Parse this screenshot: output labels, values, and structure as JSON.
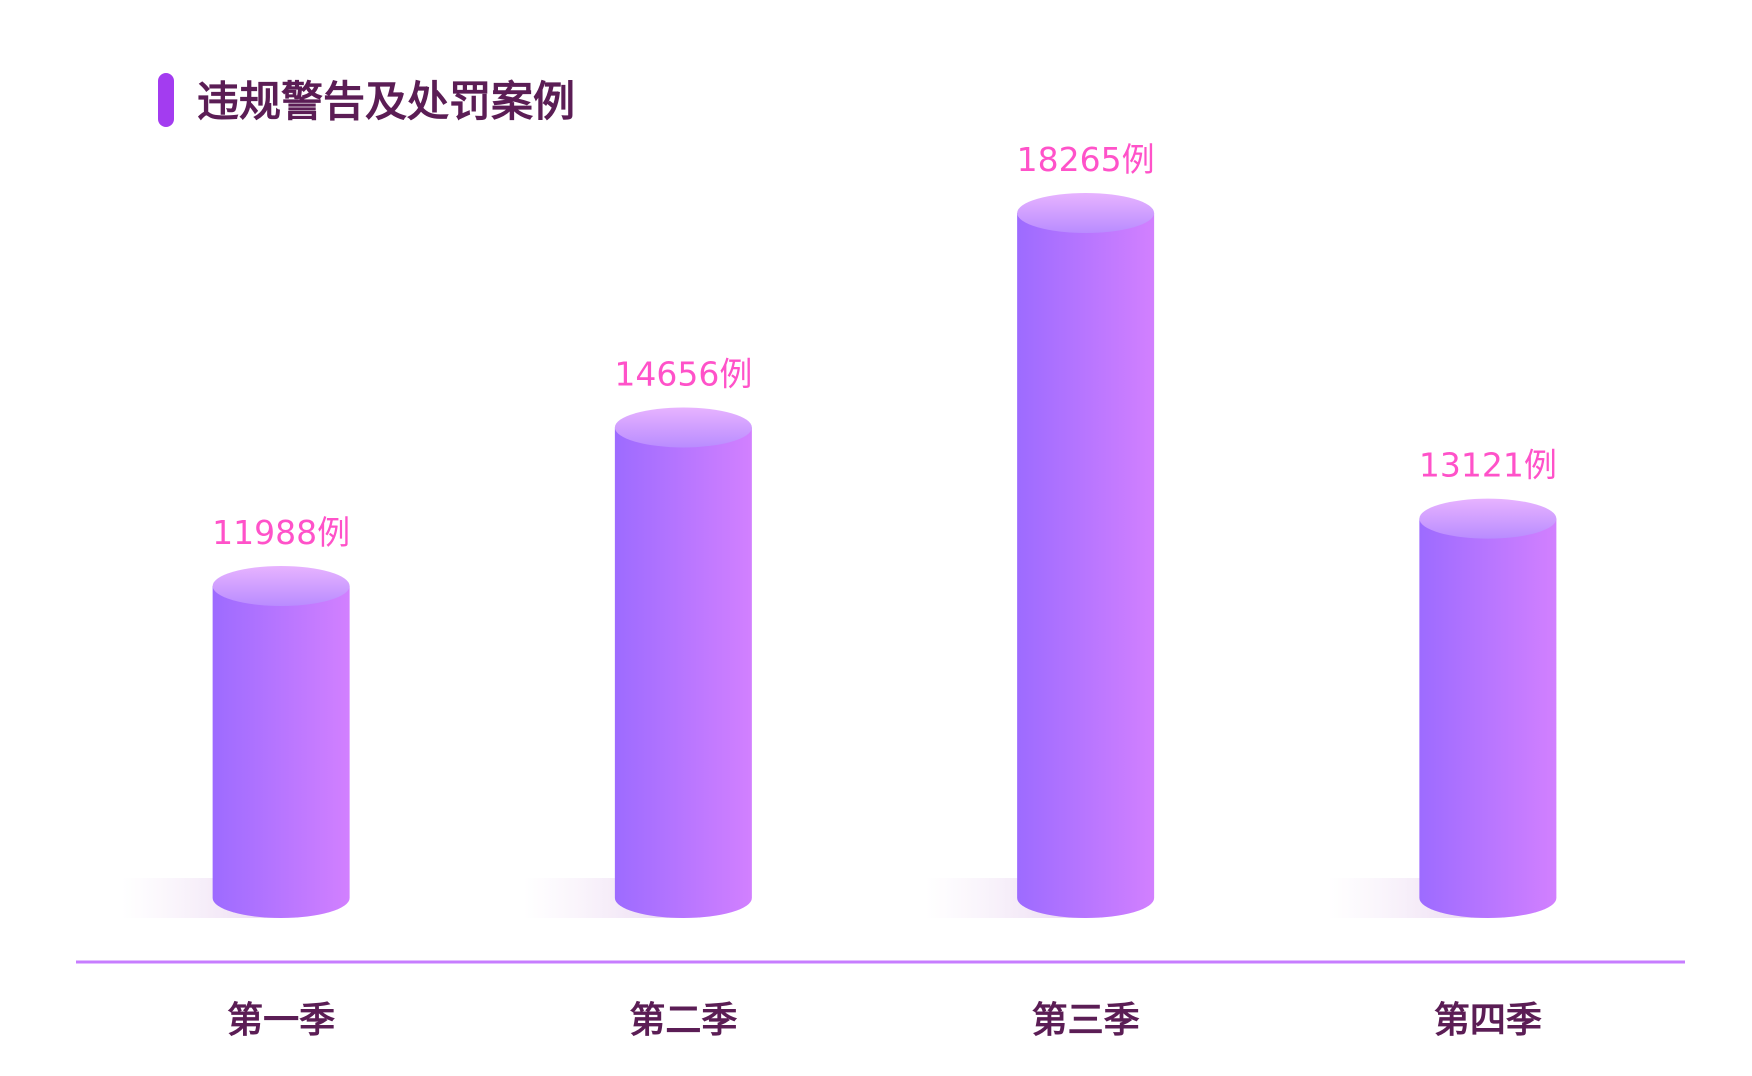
{
  "chart_data": {
    "type": "cylinder",
    "title": "违规警告及处罚案例",
    "categories": [
      "第一季",
      "第二季",
      "第三季",
      "第四季"
    ],
    "values": [
      11988,
      14656,
      18265,
      13121
    ],
    "value_labels": [
      "11988例",
      "14656例",
      "18265例",
      "13121例"
    ],
    "gradient": [
      "#9d6bff",
      "#d280ff"
    ]
  }
}
